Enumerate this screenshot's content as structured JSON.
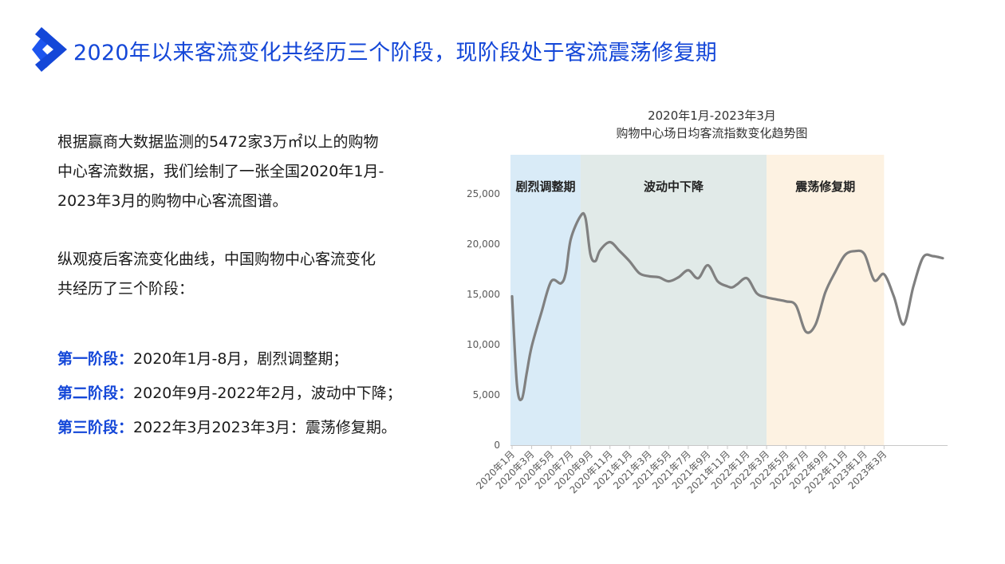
{
  "page": {
    "title": "2020年以来客流变化共经历三个阶段，现阶段处于客流震荡修复期"
  },
  "body_text": {
    "para1_lines": [
      "根据赢商大数据监测的5472家3万㎡以上的购物",
      "中心客流数据，我们绘制了一张全国2020年1月-",
      "2023年3月的购物中心客流图谱。"
    ],
    "para2_lines": [
      "纵观疫后客流变化曲线，中国购物中心客流变化",
      "共经历了三个阶段："
    ],
    "stages": [
      {
        "label": "第一阶段",
        "sep": "：",
        "text": "2020年1月-8月，剧烈调整期；"
      },
      {
        "label": "第二阶段",
        "sep": "：",
        "text": "2020年9月-2022年2月，波动中下降；"
      },
      {
        "label": "第三阶段",
        "sep": "：",
        "text": "2022年3月2023年3月：震荡修复期。"
      }
    ]
  },
  "chart_data": {
    "type": "line",
    "title_lines": [
      "2020年1月-2023年3月",
      "购物中心场日均客流指数变化趋势图"
    ],
    "x_labels": [
      "2020年1月",
      "2020年3月",
      "2020年5月",
      "2020年7月",
      "2020年9月",
      "2020年11月",
      "2021年1月",
      "2021年3月",
      "2021年5月",
      "2021年7月",
      "2021年9月",
      "2021年11月",
      "2022年1月",
      "2022年3月",
      "2022年5月",
      "2022年7月",
      "2022年9月",
      "2022年11月",
      "2023年1月",
      "2023年3月"
    ],
    "x_tick_step_months": 2,
    "y_ticks": [
      "0",
      "5,000",
      "10,000",
      "15,000",
      "20,000",
      "25,000"
    ],
    "y_range": [
      0,
      25000
    ],
    "series": [
      {
        "color": "#808080",
        "points": [
          [
            0,
            14800
          ],
          [
            0.5,
            6000
          ],
          [
            1,
            4600
          ],
          [
            1.5,
            7200
          ],
          [
            2,
            9800
          ],
          [
            3,
            13200
          ],
          [
            4,
            16300
          ],
          [
            5,
            16100
          ],
          [
            5.5,
            17200
          ],
          [
            6,
            20500
          ],
          [
            7,
            22800
          ],
          [
            7.5,
            22600
          ],
          [
            8,
            19000
          ],
          [
            8.5,
            18300
          ],
          [
            9,
            19400
          ],
          [
            10,
            20200
          ],
          [
            11,
            19300
          ],
          [
            12,
            18300
          ],
          [
            13,
            17100
          ],
          [
            14,
            16800
          ],
          [
            15,
            16700
          ],
          [
            16,
            16300
          ],
          [
            17,
            16700
          ],
          [
            18,
            17400
          ],
          [
            19,
            16600
          ],
          [
            20,
            17900
          ],
          [
            21,
            16300
          ],
          [
            22,
            15800
          ],
          [
            22.5,
            15700
          ],
          [
            23,
            16000
          ],
          [
            24,
            16600
          ],
          [
            25,
            15100
          ],
          [
            26,
            14700
          ],
          [
            27,
            14500
          ],
          [
            28,
            14300
          ],
          [
            29,
            13900
          ],
          [
            30,
            11300
          ],
          [
            31,
            12000
          ],
          [
            32,
            15200
          ],
          [
            33,
            17200
          ],
          [
            34,
            18900
          ],
          [
            35,
            19300
          ],
          [
            36,
            19000
          ],
          [
            37,
            16400
          ],
          [
            38,
            17000
          ],
          [
            39,
            14800
          ],
          [
            40,
            12000
          ],
          [
            41,
            15800
          ],
          [
            42,
            18700
          ],
          [
            43,
            18800
          ],
          [
            44,
            18600
          ]
        ]
      }
    ],
    "phases": [
      {
        "label": "剧烈调整期",
        "from": 0,
        "to": 7,
        "color": "#d9ebf7"
      },
      {
        "label": "波动中下降",
        "from": 7,
        "to": 26,
        "color": "#e1eae8"
      },
      {
        "label": "震荡修复期",
        "from": 26,
        "to": 38,
        "color": "#fdf2e2"
      }
    ],
    "grid": false
  }
}
